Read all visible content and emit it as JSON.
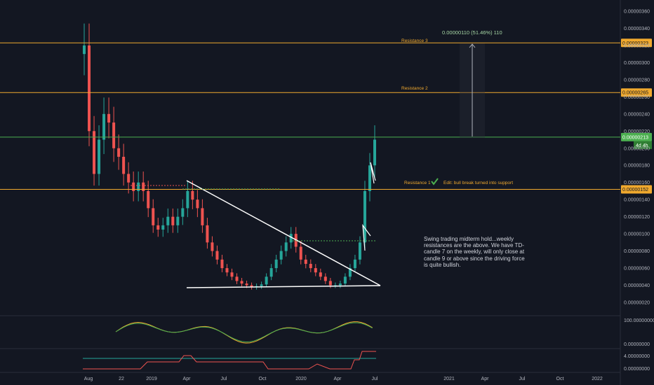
{
  "chart_data": {
    "type": "candlestick",
    "x_axis_labels": [
      "Aug",
      "22",
      "2019",
      "Apr",
      "Jul",
      "Oct",
      "2020",
      "Apr",
      "Jul",
      "2021",
      "Apr",
      "Jul",
      "Oct",
      "2022"
    ],
    "price_axis": {
      "ticks": [
        "0.00000360",
        "0.00000340",
        "0.00000320",
        "0.00000300",
        "0.00000280",
        "0.00000260",
        "0.00000240",
        "0.00000220",
        "0.00000200",
        "0.00000180",
        "0.00000160",
        "0.00000140",
        "0.00000120",
        "0.00000100",
        "0.00000080",
        "0.00000060",
        "0.00000040",
        "0.00000020"
      ],
      "range": [
        1.5e-07,
        3.65e-06
      ]
    },
    "resistance_levels": [
      {
        "label": "Resistance 3",
        "value": "0.00000323",
        "color": "#f0a92e"
      },
      {
        "label": "Resistance 2",
        "value": "0.00000265",
        "color": "#f0a92e"
      },
      {
        "label": "Resistance 1",
        "value": "0.00000152",
        "color": "#f0a92e"
      }
    ],
    "current_price": {
      "value": "0.00000213",
      "countdown": "4d 4h",
      "color": "#4caf50"
    },
    "measure": {
      "text": "0.00000110 (51.46%) 110",
      "from": 2.13e-06,
      "to": 3.23e-06
    },
    "annotation_resistance1": "Edit: bull break turned into support",
    "triangle_pattern": {
      "upper_line": [
        [
          1.605e-06,
          "2019-Apr"
        ],
        [
          4.15e-07,
          "2020-Jul"
        ]
      ],
      "lower_line": [
        [
          3.7e-07,
          "2019-Apr"
        ],
        [
          4.15e-07,
          "2020-Jul"
        ]
      ]
    },
    "weekly_closes": [
      3.2e-06,
      2.2e-06,
      1.7e-06,
      2.1e-06,
      2.4e-06,
      2.3e-06,
      2e-06,
      1.9e-06,
      1.7e-06,
      1.6e-06,
      1.5e-06,
      1.6e-06,
      1.5e-06,
      1.3e-06,
      1.1e-06,
      1.05e-06,
      1.1e-06,
      1.2e-06,
      1.1e-06,
      1.2e-06,
      1.3e-06,
      1.5e-06,
      1.4e-06,
      1.3e-06,
      1.1e-06,
      9e-07,
      8e-07,
      7e-07,
      6e-07,
      5.5e-07,
      5e-07,
      4.5e-07,
      4.2e-07,
      4e-07,
      3.8e-07,
      3.9e-07,
      4.1e-07,
      5e-07,
      6e-07,
      7e-07,
      8e-07,
      9e-07,
      1e-06,
      8.5e-07,
      7e-07,
      6.5e-07,
      6e-07,
      5.5e-07,
      5e-07,
      4.5e-07,
      4e-07,
      4e-07,
      4.2e-07,
      5e-07,
      6e-07,
      7e-07,
      9e-07,
      1.5e-06,
      1.8e-06,
      2.1e-06
    ],
    "oscillator_1": {
      "ticks": [
        "100.00000000",
        "0.00000000"
      ],
      "range": [
        0,
        100
      ]
    },
    "oscillator_2": {
      "ticks": [
        "4.00000000",
        "0.00000000"
      ],
      "range": [
        0,
        5
      ]
    }
  },
  "note_text": "Swing trading midterm hold...weekly resistances are the above. We have TD-candle 7 on the weekly, will only close at candle 9 or above since the driving force is quite bullish.",
  "colors": {
    "background": "#131722",
    "up_candle": "#26a69a",
    "down_candle": "#ef5350",
    "resistance": "#f0a92e",
    "current_line": "#4caf50",
    "trendline": "#ffffff"
  }
}
